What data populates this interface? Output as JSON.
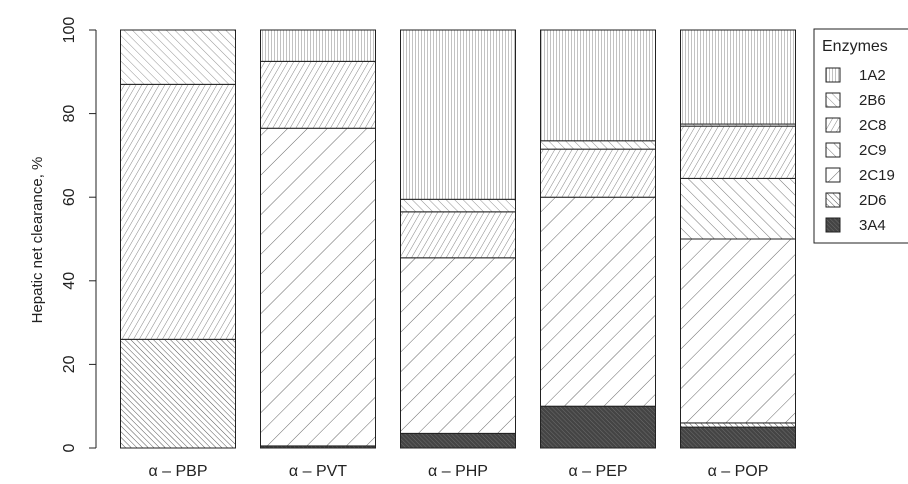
{
  "chart_data": {
    "type": "bar",
    "stacked": true,
    "categories": [
      "α – PBP",
      "α – PVT",
      "α – PHP",
      "α – PEP",
      "α – POP"
    ],
    "ylabel": "Hepatic net clearance, %",
    "xlabel": "",
    "ylim": [
      0,
      100
    ],
    "yticks": [
      0,
      20,
      40,
      60,
      80,
      100
    ],
    "grid": false,
    "legend": {
      "title": "Enzymes",
      "placement": "right"
    },
    "series": [
      {
        "name": "3A4",
        "values": [
          0,
          0.5,
          3.5,
          10,
          5
        ],
        "fill": "#555555",
        "pattern": "dense-diagonal"
      },
      {
        "name": "2D6",
        "values": [
          26,
          0,
          0,
          0,
          1
        ],
        "fill": "#ffffff",
        "pattern": "diagonal-dense"
      },
      {
        "name": "2C19",
        "values": [
          0,
          76,
          42,
          50,
          44
        ],
        "fill": "#ffffff",
        "pattern": "backslash"
      },
      {
        "name": "2C9",
        "values": [
          0,
          0,
          0,
          0,
          14.5
        ],
        "fill": "#ffffff",
        "pattern": "diagonal"
      },
      {
        "name": "2C8",
        "values": [
          61,
          16,
          11,
          11.5,
          12.5
        ],
        "fill": "#ffffff",
        "pattern": "backslash-dense"
      },
      {
        "name": "2B6",
        "values": [
          13,
          0,
          3,
          2,
          0.5
        ],
        "fill": "#ffffff",
        "pattern": "diagonal-fine"
      },
      {
        "name": "1A2",
        "values": [
          0,
          7.5,
          40.5,
          26.5,
          22.5
        ],
        "fill": "#ffffff",
        "pattern": "vertical"
      }
    ]
  }
}
